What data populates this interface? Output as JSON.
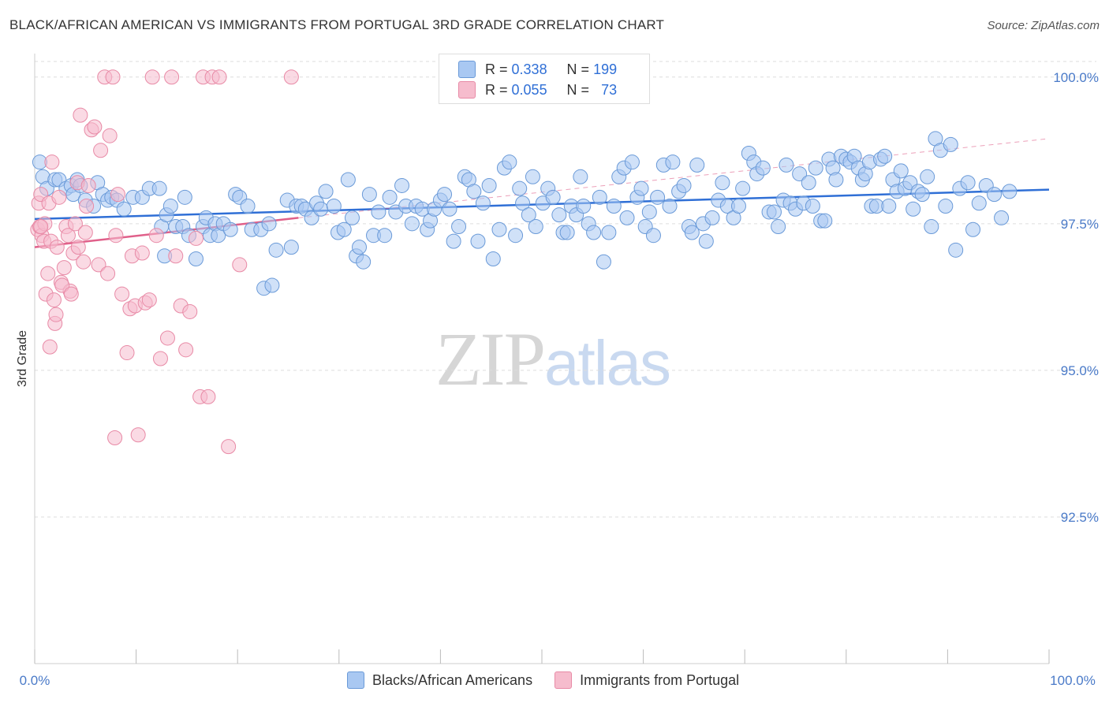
{
  "title": "BLACK/AFRICAN AMERICAN VS IMMIGRANTS FROM PORTUGAL 3RD GRADE CORRELATION CHART",
  "source": "Source: ZipAtlas.com",
  "watermark": {
    "zip": "ZIP",
    "atlas": "atlas"
  },
  "legend": {
    "rows": [
      {
        "r_label": "R =",
        "r_value": "0.338",
        "n_label": "N =",
        "n_value": "199"
      },
      {
        "r_label": "R =",
        "r_value": "0.055",
        "n_label": "N =",
        "n_value": "73"
      }
    ]
  },
  "colors": {
    "blue_fill": "#a9c8f2",
    "blue_stroke": "#6a9ad8",
    "blue_line": "#2f6fd6",
    "pink_fill": "#f6bccd",
    "pink_stroke": "#e88aa6",
    "pink_line": "#e0608a",
    "grid": "#dddddd",
    "axis_label": "#4a7ac8"
  },
  "chart_data": {
    "type": "scatter",
    "title": "BLACK/AFRICAN AMERICAN VS IMMIGRANTS FROM PORTUGAL 3RD GRADE CORRELATION CHART",
    "xlabel": "",
    "ylabel": "3rd Grade",
    "xlim": [
      0,
      100
    ],
    "ylim": [
      90.0,
      100.4
    ],
    "x_tick_labels": [
      "0.0%",
      "100.0%"
    ],
    "y_ticks": [
      92.5,
      95.0,
      97.5,
      100.0
    ],
    "y_tick_labels": [
      "92.5%",
      "95.0%",
      "97.5%",
      "100.0%"
    ],
    "grid": true,
    "legend_position": "bottom",
    "series": [
      {
        "name": "Blacks/African Americans",
        "r": 0.338,
        "n": 199,
        "trend": {
          "x0": 0,
          "y0": 97.58,
          "x1": 100,
          "y1": 98.08
        },
        "points": [
          [
            0.5,
            98.55
          ],
          [
            0.8,
            98.3
          ],
          [
            1.2,
            98.1
          ],
          [
            2.0,
            98.25
          ],
          [
            2.4,
            98.25
          ],
          [
            3.1,
            98.1
          ],
          [
            3.6,
            98.15
          ],
          [
            3.8,
            98.0
          ],
          [
            4.2,
            98.25
          ],
          [
            4.5,
            98.15
          ],
          [
            5.0,
            97.9
          ],
          [
            5.8,
            97.8
          ],
          [
            6.2,
            98.2
          ],
          [
            6.7,
            98.0
          ],
          [
            7.2,
            97.9
          ],
          [
            7.6,
            97.95
          ],
          [
            8.1,
            97.9
          ],
          [
            8.8,
            97.75
          ],
          [
            9.7,
            97.95
          ],
          [
            10.6,
            97.95
          ],
          [
            11.3,
            98.1
          ],
          [
            12.3,
            98.1
          ],
          [
            12.5,
            97.45
          ],
          [
            12.8,
            96.95
          ],
          [
            13.0,
            97.65
          ],
          [
            13.4,
            97.8
          ],
          [
            13.9,
            97.45
          ],
          [
            14.6,
            97.45
          ],
          [
            14.8,
            97.95
          ],
          [
            15.2,
            97.3
          ],
          [
            15.9,
            96.9
          ],
          [
            16.6,
            97.45
          ],
          [
            16.9,
            97.6
          ],
          [
            17.3,
            97.3
          ],
          [
            17.8,
            97.5
          ],
          [
            18.1,
            97.3
          ],
          [
            18.6,
            97.5
          ],
          [
            19.3,
            97.4
          ],
          [
            19.8,
            98.0
          ],
          [
            20.2,
            97.95
          ],
          [
            21.0,
            97.8
          ],
          [
            21.4,
            97.4
          ],
          [
            22.3,
            97.4
          ],
          [
            22.6,
            96.4
          ],
          [
            23.1,
            97.5
          ],
          [
            23.4,
            96.45
          ],
          [
            23.8,
            97.05
          ],
          [
            24.9,
            97.9
          ],
          [
            25.3,
            97.1
          ],
          [
            25.8,
            97.8
          ],
          [
            26.3,
            97.8
          ],
          [
            26.7,
            97.75
          ],
          [
            27.3,
            97.6
          ],
          [
            27.8,
            97.85
          ],
          [
            28.2,
            97.75
          ],
          [
            28.7,
            98.05
          ],
          [
            29.5,
            97.8
          ],
          [
            29.9,
            97.35
          ],
          [
            30.5,
            97.4
          ],
          [
            30.9,
            98.25
          ],
          [
            31.3,
            97.6
          ],
          [
            31.7,
            96.95
          ],
          [
            32.0,
            97.1
          ],
          [
            32.4,
            96.85
          ],
          [
            33.0,
            98.0
          ],
          [
            33.4,
            97.3
          ],
          [
            33.9,
            97.7
          ],
          [
            34.5,
            97.3
          ],
          [
            35.0,
            97.95
          ],
          [
            35.6,
            97.7
          ],
          [
            36.2,
            98.15
          ],
          [
            36.6,
            97.8
          ],
          [
            37.2,
            97.5
          ],
          [
            37.6,
            97.8
          ],
          [
            38.2,
            97.75
          ],
          [
            38.7,
            97.4
          ],
          [
            39.0,
            97.55
          ],
          [
            39.4,
            97.75
          ],
          [
            40.0,
            97.9
          ],
          [
            40.4,
            98.0
          ],
          [
            40.9,
            97.75
          ],
          [
            41.3,
            97.2
          ],
          [
            41.8,
            97.45
          ],
          [
            42.4,
            98.3
          ],
          [
            42.8,
            98.25
          ],
          [
            43.3,
            98.05
          ],
          [
            43.7,
            97.2
          ],
          [
            44.2,
            97.85
          ],
          [
            44.8,
            98.15
          ],
          [
            45.2,
            96.9
          ],
          [
            45.8,
            97.4
          ],
          [
            46.3,
            98.45
          ],
          [
            46.8,
            98.55
          ],
          [
            47.4,
            97.3
          ],
          [
            47.8,
            98.1
          ],
          [
            48.1,
            97.85
          ],
          [
            48.7,
            97.65
          ],
          [
            49.1,
            98.3
          ],
          [
            49.4,
            97.45
          ],
          [
            50.1,
            97.85
          ],
          [
            50.6,
            98.1
          ],
          [
            51.1,
            97.95
          ],
          [
            51.7,
            97.65
          ],
          [
            52.1,
            97.35
          ],
          [
            52.5,
            97.35
          ],
          [
            52.9,
            97.8
          ],
          [
            53.4,
            97.65
          ],
          [
            53.8,
            98.3
          ],
          [
            54.1,
            97.8
          ],
          [
            54.6,
            97.5
          ],
          [
            55.1,
            97.35
          ],
          [
            55.7,
            97.95
          ],
          [
            56.1,
            96.85
          ],
          [
            56.6,
            97.35
          ],
          [
            57.1,
            97.8
          ],
          [
            57.6,
            98.3
          ],
          [
            58.1,
            98.45
          ],
          [
            58.4,
            97.6
          ],
          [
            58.9,
            98.55
          ],
          [
            59.4,
            97.95
          ],
          [
            59.8,
            98.1
          ],
          [
            60.2,
            97.45
          ],
          [
            60.6,
            97.7
          ],
          [
            61.0,
            97.3
          ],
          [
            61.4,
            97.95
          ],
          [
            62.0,
            98.5
          ],
          [
            62.6,
            97.8
          ],
          [
            62.9,
            98.55
          ],
          [
            63.5,
            98.05
          ],
          [
            64.0,
            98.15
          ],
          [
            64.5,
            97.45
          ],
          [
            64.8,
            97.35
          ],
          [
            65.3,
            98.5
          ],
          [
            65.9,
            97.5
          ],
          [
            66.2,
            97.2
          ],
          [
            66.8,
            97.6
          ],
          [
            67.4,
            97.9
          ],
          [
            67.8,
            98.2
          ],
          [
            68.3,
            97.8
          ],
          [
            68.9,
            97.6
          ],
          [
            69.4,
            97.8
          ],
          [
            69.8,
            98.1
          ],
          [
            70.4,
            98.7
          ],
          [
            70.9,
            98.55
          ],
          [
            71.2,
            98.35
          ],
          [
            71.8,
            98.45
          ],
          [
            72.4,
            97.7
          ],
          [
            72.9,
            97.7
          ],
          [
            73.3,
            97.45
          ],
          [
            73.8,
            97.9
          ],
          [
            74.1,
            98.5
          ],
          [
            74.5,
            97.85
          ],
          [
            75.0,
            97.75
          ],
          [
            75.4,
            98.35
          ],
          [
            75.8,
            97.85
          ],
          [
            76.3,
            98.2
          ],
          [
            76.7,
            97.8
          ],
          [
            77.0,
            98.45
          ],
          [
            77.5,
            97.55
          ],
          [
            77.9,
            97.55
          ],
          [
            78.3,
            98.6
          ],
          [
            78.7,
            98.45
          ],
          [
            79.0,
            98.25
          ],
          [
            79.5,
            98.65
          ],
          [
            80.0,
            98.6
          ],
          [
            80.4,
            98.55
          ],
          [
            80.8,
            98.65
          ],
          [
            81.2,
            98.45
          ],
          [
            81.6,
            98.25
          ],
          [
            81.9,
            98.35
          ],
          [
            82.3,
            98.55
          ],
          [
            82.5,
            97.8
          ],
          [
            83.0,
            97.8
          ],
          [
            83.4,
            98.6
          ],
          [
            83.8,
            98.65
          ],
          [
            84.2,
            97.8
          ],
          [
            84.6,
            98.25
          ],
          [
            85.0,
            98.05
          ],
          [
            85.4,
            98.4
          ],
          [
            85.8,
            98.1
          ],
          [
            86.3,
            98.2
          ],
          [
            86.6,
            97.75
          ],
          [
            87.1,
            98.05
          ],
          [
            87.5,
            98.0
          ],
          [
            88.0,
            98.3
          ],
          [
            88.4,
            97.45
          ],
          [
            88.8,
            98.95
          ],
          [
            89.3,
            98.75
          ],
          [
            89.8,
            97.8
          ],
          [
            90.3,
            98.85
          ],
          [
            90.8,
            97.05
          ],
          [
            91.2,
            98.1
          ],
          [
            92.0,
            98.2
          ],
          [
            92.5,
            97.4
          ],
          [
            93.1,
            97.85
          ],
          [
            93.8,
            98.15
          ],
          [
            94.6,
            98.0
          ],
          [
            95.3,
            97.6
          ],
          [
            96.1,
            98.05
          ]
        ]
      },
      {
        "name": "Immigrants from Portugal",
        "r": 0.055,
        "n": 73,
        "trend": {
          "x0": 0,
          "y0": 97.1,
          "x1": 26,
          "y1": 97.6
        },
        "trend_ext": {
          "x0": 26,
          "y0": 97.6,
          "x1": 100,
          "y1": 98.95
        },
        "points": [
          [
            0.3,
            97.4
          ],
          [
            0.4,
            97.85
          ],
          [
            0.5,
            97.45
          ],
          [
            0.6,
            98.0
          ],
          [
            0.7,
            97.3
          ],
          [
            0.9,
            97.2
          ],
          [
            1.0,
            97.5
          ],
          [
            1.1,
            96.3
          ],
          [
            1.3,
            96.65
          ],
          [
            1.4,
            97.85
          ],
          [
            1.5,
            95.4
          ],
          [
            1.7,
            98.55
          ],
          [
            1.9,
            96.2
          ],
          [
            2.0,
            95.8
          ],
          [
            2.1,
            95.95
          ],
          [
            2.4,
            97.95
          ],
          [
            2.6,
            96.5
          ],
          [
            2.9,
            96.75
          ],
          [
            3.1,
            97.45
          ],
          [
            3.3,
            97.3
          ],
          [
            3.5,
            96.35
          ],
          [
            3.8,
            97.0
          ],
          [
            4.0,
            97.5
          ],
          [
            4.2,
            98.2
          ],
          [
            4.5,
            99.35
          ],
          [
            4.8,
            96.85
          ],
          [
            5.1,
            97.8
          ],
          [
            5.3,
            98.15
          ],
          [
            5.6,
            99.1
          ],
          [
            5.9,
            99.15
          ],
          [
            6.3,
            96.8
          ],
          [
            6.5,
            98.75
          ],
          [
            6.9,
            100.0
          ],
          [
            7.2,
            96.65
          ],
          [
            7.4,
            99.0
          ],
          [
            7.7,
            100.0
          ],
          [
            8.0,
            97.3
          ],
          [
            8.2,
            98.0
          ],
          [
            8.6,
            96.3
          ],
          [
            9.1,
            95.3
          ],
          [
            9.4,
            96.05
          ],
          [
            9.6,
            96.95
          ],
          [
            9.9,
            96.1
          ],
          [
            10.2,
            93.9
          ],
          [
            10.6,
            97.0
          ],
          [
            10.9,
            96.15
          ],
          [
            11.3,
            96.2
          ],
          [
            11.6,
            100.0
          ],
          [
            12.0,
            97.3
          ],
          [
            12.4,
            95.2
          ],
          [
            13.1,
            95.55
          ],
          [
            13.5,
            100.0
          ],
          [
            13.9,
            96.95
          ],
          [
            14.4,
            96.1
          ],
          [
            14.9,
            95.35
          ],
          [
            15.3,
            96.0
          ],
          [
            15.9,
            97.25
          ],
          [
            16.3,
            94.55
          ],
          [
            16.6,
            100.0
          ],
          [
            17.1,
            94.55
          ],
          [
            17.5,
            100.0
          ],
          [
            18.2,
            100.0
          ],
          [
            19.1,
            93.7
          ],
          [
            7.9,
            93.85
          ],
          [
            0.6,
            97.45
          ],
          [
            1.6,
            97.2
          ],
          [
            2.2,
            97.1
          ],
          [
            2.7,
            96.45
          ],
          [
            3.6,
            96.3
          ],
          [
            4.3,
            97.1
          ],
          [
            5.0,
            97.35
          ],
          [
            20.2,
            96.8
          ],
          [
            25.3,
            100.0
          ]
        ]
      }
    ]
  }
}
